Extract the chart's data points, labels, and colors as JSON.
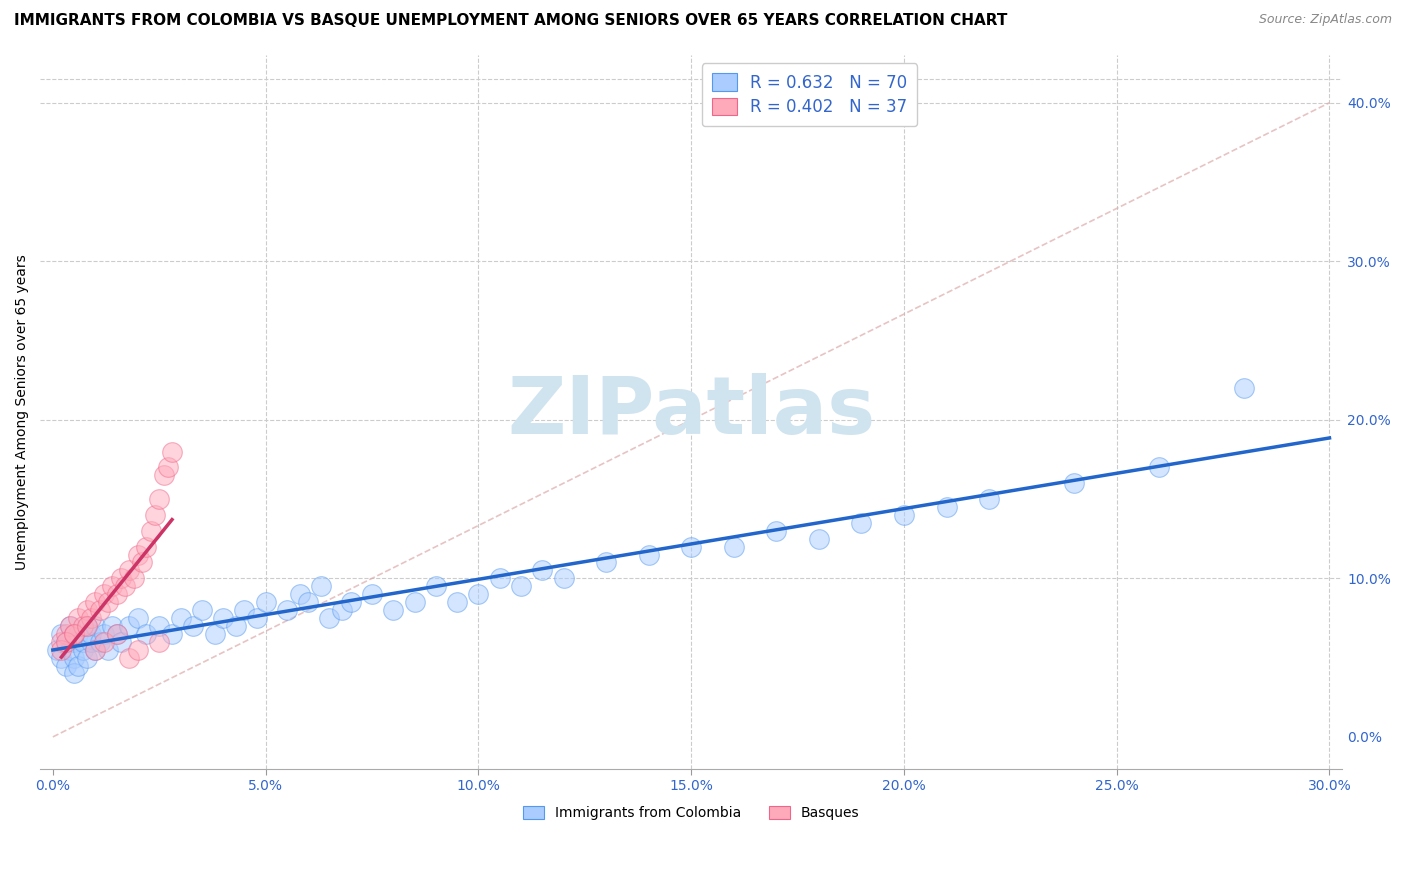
{
  "title": "IMMIGRANTS FROM COLOMBIA VS BASQUE UNEMPLOYMENT AMONG SENIORS OVER 65 YEARS CORRELATION CHART",
  "source": "Source: ZipAtlas.com",
  "ylabel": "Unemployment Among Seniors over 65 years",
  "xlim": [
    0.0,
    0.3
  ],
  "ylim": [
    -0.02,
    0.43
  ],
  "xticks": [
    0.0,
    0.05,
    0.1,
    0.15,
    0.2,
    0.25,
    0.3
  ],
  "yticks_right": [
    0.0,
    0.1,
    0.2,
    0.3,
    0.4
  ],
  "r_colombia": 0.632,
  "n_colombia": 70,
  "r_basque": 0.402,
  "n_basque": 37,
  "legend_labels": [
    "Immigrants from Colombia",
    "Basques"
  ],
  "color_colombia_fill": "#aaccff",
  "color_colombia_edge": "#5599ee",
  "color_basque_fill": "#ffaabb",
  "color_basque_edge": "#ee6688",
  "color_colombia_line": "#2266cc",
  "color_basque_line": "#cc3366",
  "color_legend_r": "#3366cc",
  "color_legend_n": "#cc3300",
  "watermark": "ZIPatlas",
  "watermark_color": "#d0e4f0",
  "grid_color": "#cccccc",
  "colombia_x": [
    0.001,
    0.002,
    0.002,
    0.003,
    0.003,
    0.004,
    0.004,
    0.005,
    0.005,
    0.005,
    0.006,
    0.006,
    0.007,
    0.007,
    0.008,
    0.008,
    0.009,
    0.009,
    0.01,
    0.01,
    0.011,
    0.012,
    0.013,
    0.014,
    0.015,
    0.016,
    0.018,
    0.02,
    0.022,
    0.025,
    0.028,
    0.03,
    0.033,
    0.035,
    0.038,
    0.04,
    0.043,
    0.045,
    0.048,
    0.05,
    0.055,
    0.058,
    0.06,
    0.063,
    0.065,
    0.068,
    0.07,
    0.075,
    0.08,
    0.085,
    0.09,
    0.095,
    0.1,
    0.105,
    0.11,
    0.115,
    0.12,
    0.13,
    0.14,
    0.15,
    0.16,
    0.17,
    0.18,
    0.19,
    0.2,
    0.21,
    0.22,
    0.24,
    0.26,
    0.28
  ],
  "colombia_y": [
    0.055,
    0.05,
    0.065,
    0.045,
    0.06,
    0.055,
    0.07,
    0.06,
    0.05,
    0.04,
    0.065,
    0.045,
    0.055,
    0.06,
    0.07,
    0.05,
    0.06,
    0.065,
    0.055,
    0.07,
    0.06,
    0.065,
    0.055,
    0.07,
    0.065,
    0.06,
    0.07,
    0.075,
    0.065,
    0.07,
    0.065,
    0.075,
    0.07,
    0.08,
    0.065,
    0.075,
    0.07,
    0.08,
    0.075,
    0.085,
    0.08,
    0.09,
    0.085,
    0.095,
    0.075,
    0.08,
    0.085,
    0.09,
    0.08,
    0.085,
    0.095,
    0.085,
    0.09,
    0.1,
    0.095,
    0.105,
    0.1,
    0.11,
    0.115,
    0.12,
    0.12,
    0.13,
    0.125,
    0.135,
    0.14,
    0.145,
    0.15,
    0.16,
    0.17,
    0.22
  ],
  "basque_x": [
    0.002,
    0.003,
    0.004,
    0.005,
    0.006,
    0.007,
    0.008,
    0.009,
    0.01,
    0.011,
    0.012,
    0.013,
    0.014,
    0.015,
    0.016,
    0.017,
    0.018,
    0.019,
    0.02,
    0.021,
    0.022,
    0.023,
    0.024,
    0.025,
    0.026,
    0.027,
    0.028,
    0.002,
    0.003,
    0.005,
    0.008,
    0.01,
    0.012,
    0.015,
    0.018,
    0.02,
    0.025
  ],
  "basque_y": [
    0.06,
    0.065,
    0.07,
    0.065,
    0.075,
    0.07,
    0.08,
    0.075,
    0.085,
    0.08,
    0.09,
    0.085,
    0.095,
    0.09,
    0.1,
    0.095,
    0.105,
    0.1,
    0.115,
    0.11,
    0.12,
    0.13,
    0.14,
    0.15,
    0.165,
    0.17,
    0.18,
    0.055,
    0.06,
    0.065,
    0.07,
    0.055,
    0.06,
    0.065,
    0.05,
    0.055,
    0.06
  ]
}
